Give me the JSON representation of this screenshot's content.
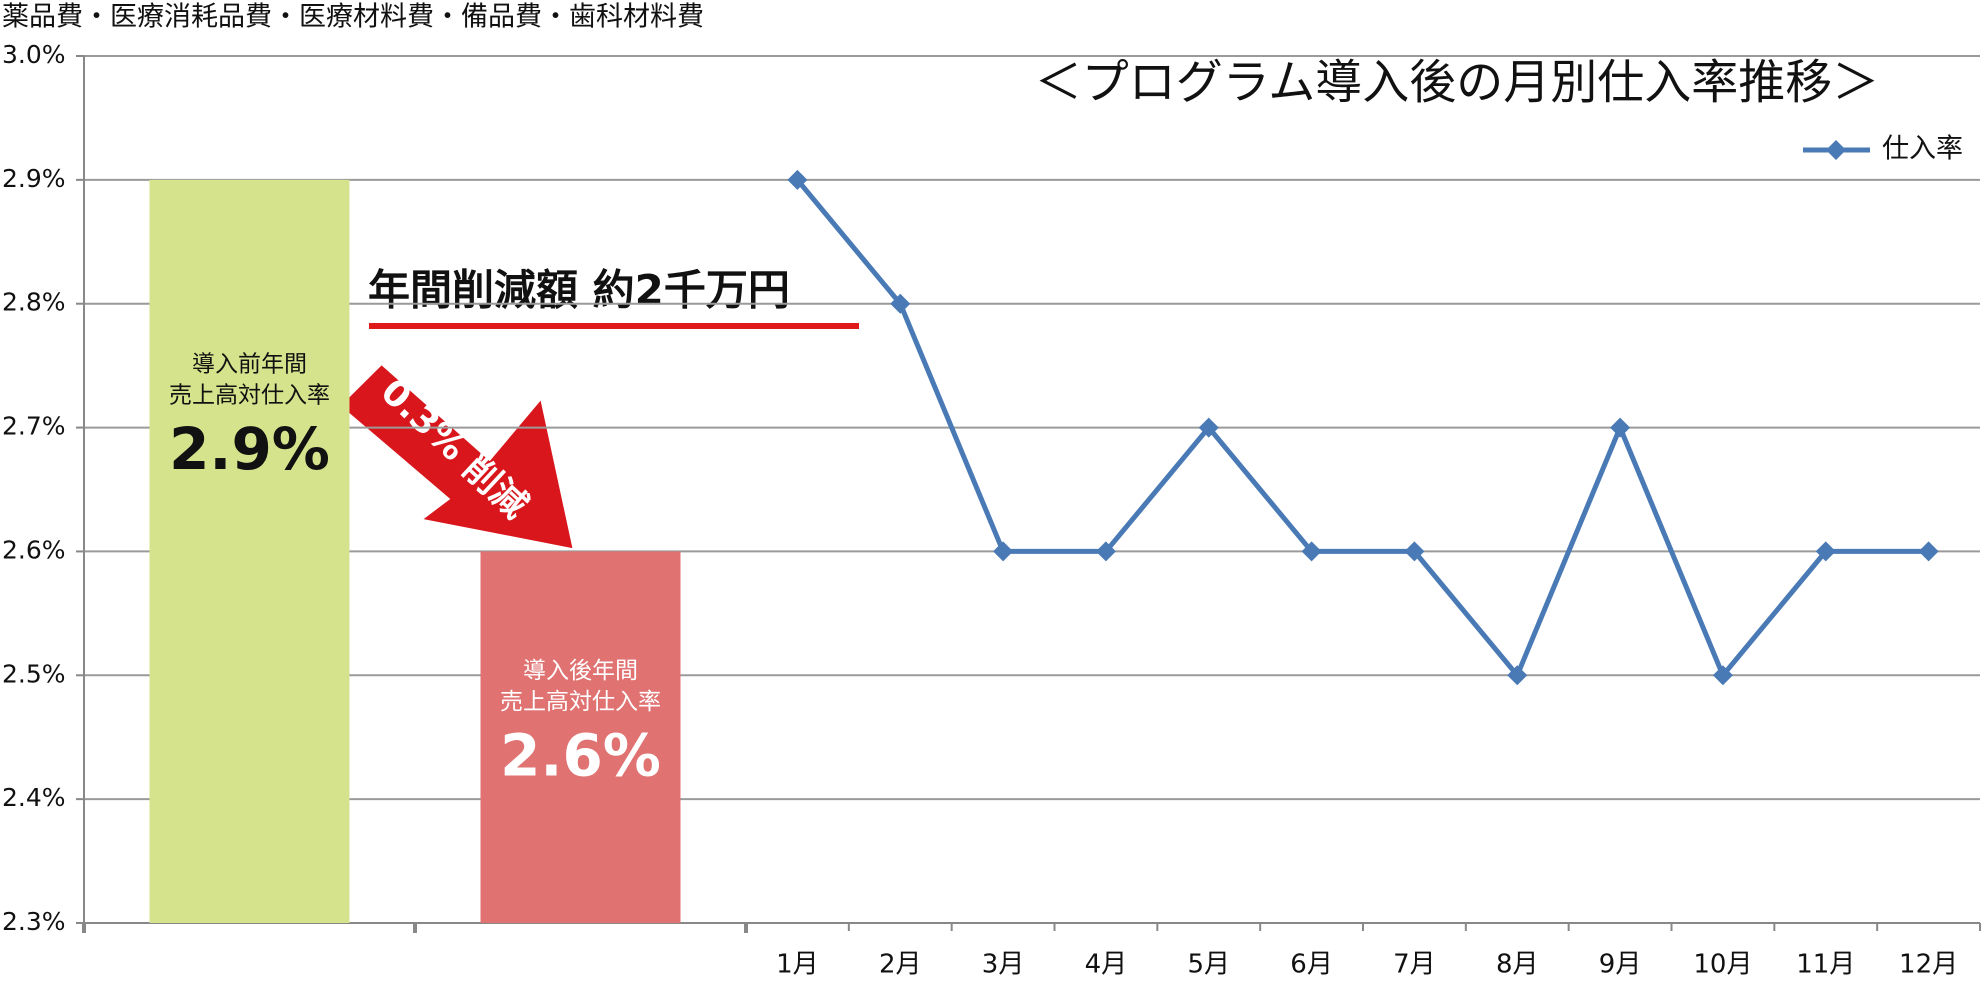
{
  "chart_data": {
    "type": "bar-line",
    "title": "＜プログラム導入後の月別仕入率推移＞",
    "subtitle": "薬品費・医療消耗品費・医療材料費・備品費・歯科材料費",
    "annotations": [
      "年間削減額 約2千万円",
      "0.3% 削減"
    ],
    "ylim": [
      2.3,
      3.0
    ],
    "yticks": [
      {
        "value": 2.3,
        "label": "2.3%"
      },
      {
        "value": 2.4,
        "label": "2.4%"
      },
      {
        "value": 2.5,
        "label": "2.5%"
      },
      {
        "value": 2.6,
        "label": "2.6%"
      },
      {
        "value": 2.7,
        "label": "2.7%"
      },
      {
        "value": 2.8,
        "label": "2.8%"
      },
      {
        "value": 2.9,
        "label": "2.9%"
      },
      {
        "value": 3.0,
        "label": "3.0%"
      }
    ],
    "grid": true,
    "bars": [
      {
        "label_lines": [
          "導入前年間",
          "売上高対仕入率"
        ],
        "value": 2.9,
        "value_label": "2.9%",
        "color": "#d4e38c",
        "text_color": "#111111"
      },
      {
        "label_lines": [
          "導入後年間",
          "売上高対仕入率"
        ],
        "value": 2.6,
        "value_label": "2.6%",
        "color": "#e07272",
        "text_color": "#ffffff"
      }
    ],
    "categories": [
      "1月",
      "2月",
      "3月",
      "4月",
      "5月",
      "6月",
      "7月",
      "8月",
      "9月",
      "10月",
      "11月",
      "12月"
    ],
    "series": [
      {
        "name": "仕入率",
        "color": "#4a7ab5",
        "values": [
          2.9,
          2.8,
          2.6,
          2.6,
          2.7,
          2.6,
          2.6,
          2.5,
          2.7,
          2.5,
          2.6,
          2.6
        ]
      }
    ],
    "legend": "top-right"
  }
}
